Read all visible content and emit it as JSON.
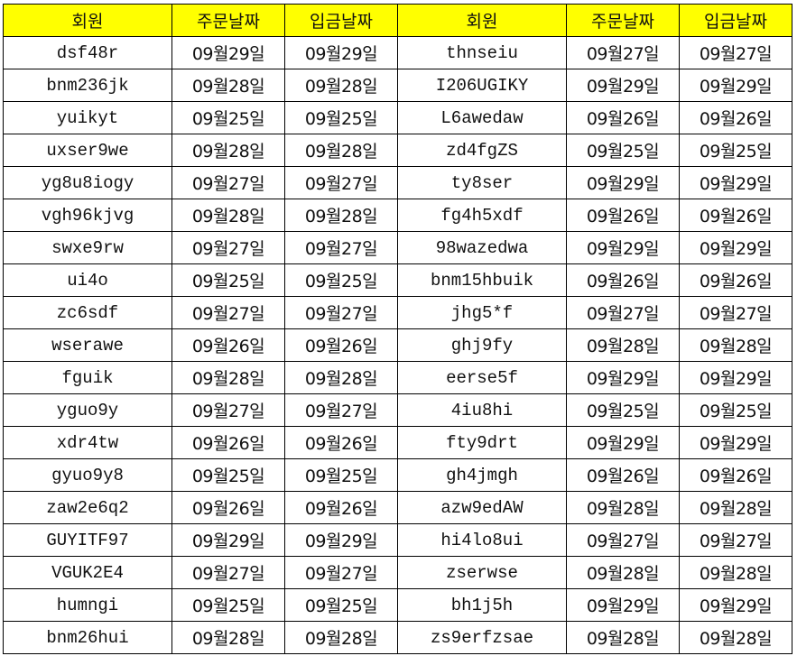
{
  "header_color": "#ffff00",
  "headers": [
    "회원",
    "주문날짜",
    "입금날짜",
    "회원",
    "주문날짜",
    "입금날짜"
  ],
  "rows": [
    [
      "dsf48r",
      "09월29일",
      "09월29일",
      "thnseiu",
      "09월27일",
      "09월27일"
    ],
    [
      "bnm236jk",
      "09월28일",
      "09월28일",
      "I206UGIKY",
      "09월29일",
      "09월29일"
    ],
    [
      "yuikyt",
      "09월25일",
      "09월25일",
      "L6awedaw",
      "09월26일",
      "09월26일"
    ],
    [
      "uxser9we",
      "09월28일",
      "09월28일",
      "zd4fgZS",
      "09월25일",
      "09월25일"
    ],
    [
      "yg8u8iogy",
      "09월27일",
      "09월27일",
      "ty8ser",
      "09월29일",
      "09월29일"
    ],
    [
      "vgh96kjvg",
      "09월28일",
      "09월28일",
      "fg4h5xdf",
      "09월26일",
      "09월26일"
    ],
    [
      "swxe9rw",
      "09월27일",
      "09월27일",
      "98wazedwa",
      "09월29일",
      "09월29일"
    ],
    [
      "ui4o",
      "09월25일",
      "09월25일",
      "bnm15hbuik",
      "09월26일",
      "09월26일"
    ],
    [
      "zc6sdf",
      "09월27일",
      "09월27일",
      "jhg5*f",
      "09월27일",
      "09월27일"
    ],
    [
      "wserawe",
      "09월26일",
      "09월26일",
      "ghj9fy",
      "09월28일",
      "09월28일"
    ],
    [
      "fguik",
      "09월28일",
      "09월28일",
      "eerse5f",
      "09월29일",
      "09월29일"
    ],
    [
      "yguo9y",
      "09월27일",
      "09월27일",
      "4iu8hi",
      "09월25일",
      "09월25일"
    ],
    [
      "xdr4tw",
      "09월26일",
      "09월26일",
      "fty9drt",
      "09월29일",
      "09월29일"
    ],
    [
      "gyuo9y8",
      "09월25일",
      "09월25일",
      "gh4jmgh",
      "09월26일",
      "09월26일"
    ],
    [
      "zaw2e6q2",
      "09월26일",
      "09월26일",
      "azw9edAW",
      "09월28일",
      "09월28일"
    ],
    [
      "GUYITF97",
      "09월29일",
      "09월29일",
      "hi4lo8ui",
      "09월27일",
      "09월27일"
    ],
    [
      "VGUK2E4",
      "09월27일",
      "09월27일",
      "zserwse",
      "09월28일",
      "09월28일"
    ],
    [
      "humngi",
      "09월25일",
      "09월25일",
      "bh1j5h",
      "09월29일",
      "09월29일"
    ],
    [
      "bnm26hui",
      "09월28일",
      "09월28일",
      "zs9erfzsae",
      "09월28일",
      "09월28일"
    ]
  ]
}
